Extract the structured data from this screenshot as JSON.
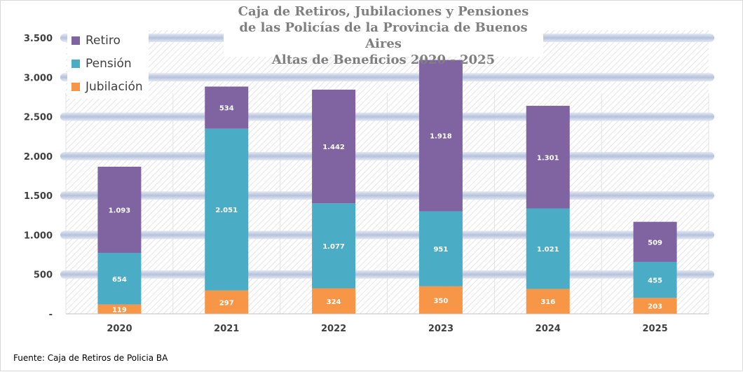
{
  "title_lines": [
    "Caja de Retiros, Jubilaciones y Pensiones",
    "de las Policías de la Provincia de Buenos Aires",
    "Altas de Beneficios 2020  - 2025"
  ],
  "source": "Fuente: Caja de Retiros de Policia BA",
  "chart_data": {
    "type": "bar",
    "stacked": true,
    "categories": [
      "2020",
      "2021",
      "2022",
      "2023",
      "2024",
      "2025"
    ],
    "series": [
      {
        "name": "Jubilación",
        "color": "#f79646",
        "values": [
          119,
          297,
          324,
          350,
          316,
          203
        ],
        "labels": [
          "119",
          "297",
          "324",
          "350",
          "316",
          "203"
        ]
      },
      {
        "name": "Pensión",
        "color": "#4bacc6",
        "values": [
          654,
          2051,
          1077,
          951,
          1021,
          455
        ],
        "labels": [
          "654",
          "2.051",
          "1.077",
          "951",
          "1.021",
          "455"
        ]
      },
      {
        "name": "Retiro",
        "color": "#8064a2",
        "values": [
          1093,
          534,
          1442,
          1918,
          1301,
          509
        ],
        "labels": [
          "1.093",
          "534",
          "1.442",
          "1.918",
          "1.301",
          "509"
        ]
      }
    ],
    "legend_order": [
      "Retiro",
      "Pensión",
      "Jubilación"
    ],
    "legend_position": "top-left",
    "ylim": [
      0,
      3500
    ],
    "yticks": [
      0,
      500,
      1000,
      1500,
      2000,
      2500,
      3000,
      3500
    ],
    "ytick_labels": [
      "-",
      "500",
      "1.000",
      "1.500",
      "2.000",
      "2.500",
      "3.000",
      "3.500"
    ],
    "grid": true
  }
}
